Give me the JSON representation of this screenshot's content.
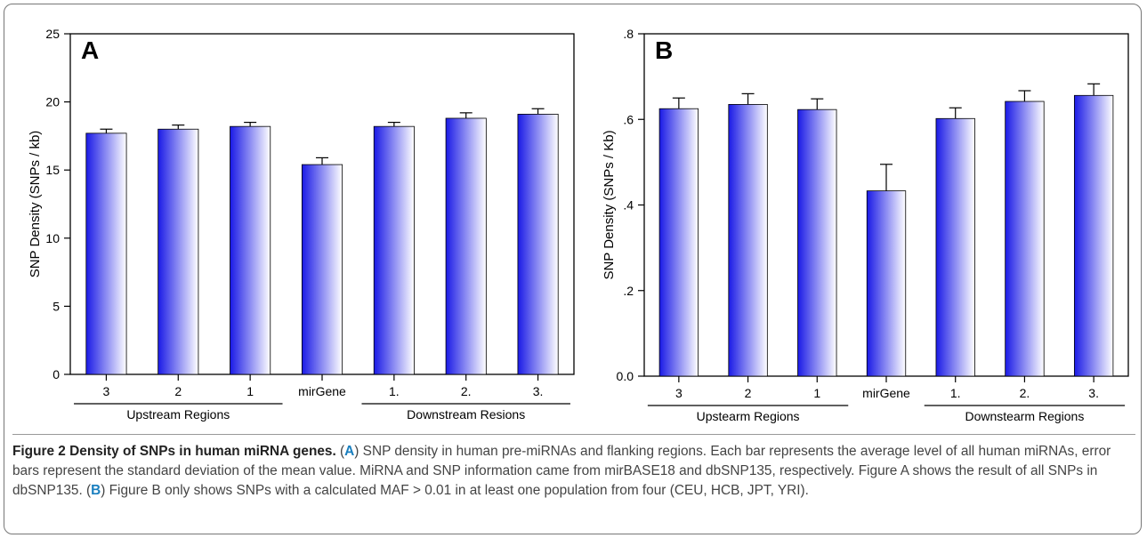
{
  "caption": {
    "title": "Figure 2 Density of SNPs in human miRNA genes.",
    "open_a": " (",
    "label_a": "A",
    "text_a": ") SNP density in human pre-miRNAs and flanking regions. Each bar represents the average level of all human miRNAs, error bars represent the standard deviation of the mean value. MiRNA and SNP information came from mirBASE18 and dbSNP135, respectively. Figure A shows the result of all SNPs in dbSNP135. (",
    "label_b": "B",
    "text_b": ") Figure B only shows SNPs with a calculated MAF > 0.01 in at least one population from four (CEU, HCB, JPT, YRI)."
  },
  "colors": {
    "bar_dark": "#1a1ae6",
    "bar_light": "#ffffff",
    "axis": "#000000"
  },
  "chart_data": [
    {
      "type": "bar",
      "panel_label": "A",
      "ylabel": "SNP Density (SNPs / kb)",
      "ylim": [
        0,
        25
      ],
      "yticks": [
        0,
        5,
        10,
        15,
        20,
        25
      ],
      "ytick_labels": [
        "0",
        "5",
        "10",
        "15",
        "20",
        "25"
      ],
      "categories": [
        "3",
        "2",
        "1",
        "mirGene",
        "1.",
        "2.",
        "3."
      ],
      "values": [
        17.7,
        18.0,
        18.2,
        15.4,
        18.2,
        18.8,
        19.1
      ],
      "errors": [
        0.3,
        0.3,
        0.3,
        0.5,
        0.3,
        0.4,
        0.4
      ],
      "groups": [
        {
          "label": "Upstream Regions",
          "categories": [
            "3",
            "2",
            "1"
          ]
        },
        {
          "label": "Downstream Resions",
          "categories": [
            "1.",
            "2.",
            "3."
          ]
        }
      ],
      "grid": false
    },
    {
      "type": "bar",
      "panel_label": "B",
      "ylabel": "SNP Density (SNPs / Kb)",
      "ylim": [
        0,
        0.8
      ],
      "yticks": [
        0,
        0.2,
        0.4,
        0.6,
        0.8
      ],
      "ytick_labels": [
        "0.0",
        ".2",
        ".4",
        ".6",
        ".8"
      ],
      "categories": [
        "3",
        "2",
        "1",
        "mirGene",
        "1.",
        "2.",
        "3."
      ],
      "values": [
        0.625,
        0.635,
        0.623,
        0.433,
        0.602,
        0.642,
        0.656
      ],
      "errors": [
        0.025,
        0.025,
        0.025,
        0.062,
        0.025,
        0.025,
        0.027
      ],
      "groups": [
        {
          "label": "Upstearm Regions",
          "categories": [
            "3",
            "2",
            "1"
          ]
        },
        {
          "label": "Downstearm Regions",
          "categories": [
            "1.",
            "2.",
            "3."
          ]
        }
      ],
      "grid": false
    }
  ]
}
